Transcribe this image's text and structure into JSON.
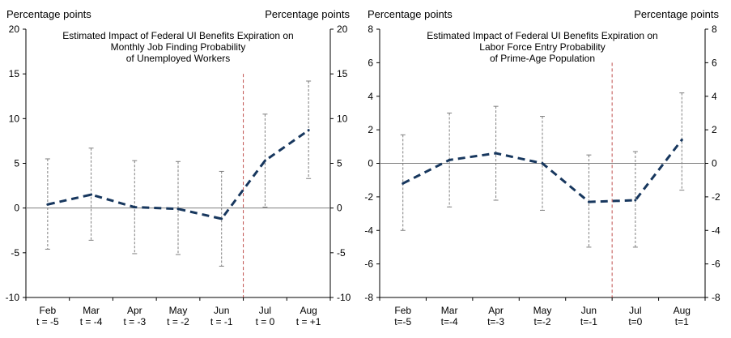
{
  "chart_data": [
    {
      "type": "line",
      "title": "Estimated Impact of Federal UI Benefits Expiration on\nMonthly Job Finding Probability\nof Unemployed Workers",
      "ylabel_left": "Percentage  points",
      "ylabel_right": "Percentage  points",
      "categories": [
        "Feb\nt = -5",
        "Mar\nt = -4",
        "Apr\nt = -3",
        "May\nt = -2",
        "Jun\nt = -1",
        "Jul\nt = 0",
        "Aug\nt = +1"
      ],
      "ylim": [
        -10,
        20
      ],
      "yticks": [
        -10,
        -5,
        0,
        5,
        10,
        15,
        20
      ],
      "series": [
        {
          "values": [
            0.4,
            1.5,
            0.1,
            -0.1,
            -1.2,
            5.3,
            8.7
          ],
          "lower": [
            -4.6,
            -3.6,
            -5.1,
            -5.2,
            -6.5,
            0.1,
            3.3
          ],
          "upper": [
            5.5,
            6.7,
            5.3,
            5.2,
            4.1,
            10.5,
            14.2
          ]
        }
      ],
      "event_line_after": 4,
      "zero_line": true,
      "colors": {
        "line": "#17375e",
        "event": "#c0504d",
        "error": "#7f7f7f"
      }
    },
    {
      "type": "line",
      "title": "Estimated Impact of Federal UI Benefits Expiration on\nLabor Force Entry Probability\nof Prime-Age Population",
      "ylabel_left": "Percentage  points",
      "ylabel_right": "Percentage  points",
      "categories": [
        "Feb\nt=-5",
        "Mar\nt=-4",
        "Apr\nt=-3",
        "May\nt=-2",
        "Jun\nt=-1",
        "Jul\nt=0",
        "Aug\nt=1"
      ],
      "ylim": [
        -8,
        8
      ],
      "yticks": [
        -8,
        -6,
        -4,
        -2,
        0,
        2,
        4,
        6,
        8
      ],
      "series": [
        {
          "values": [
            -1.2,
            0.2,
            0.6,
            0.0,
            -2.3,
            -2.2,
            1.4
          ],
          "lower": [
            -4.0,
            -2.6,
            -2.2,
            -2.8,
            -5.0,
            -5.0,
            -1.6
          ],
          "upper": [
            1.7,
            3.0,
            3.4,
            2.8,
            0.5,
            0.7,
            4.2
          ]
        }
      ],
      "event_line_after": 4,
      "zero_line": true,
      "colors": {
        "line": "#17375e",
        "event": "#c0504d",
        "error": "#7f7f7f"
      }
    }
  ]
}
